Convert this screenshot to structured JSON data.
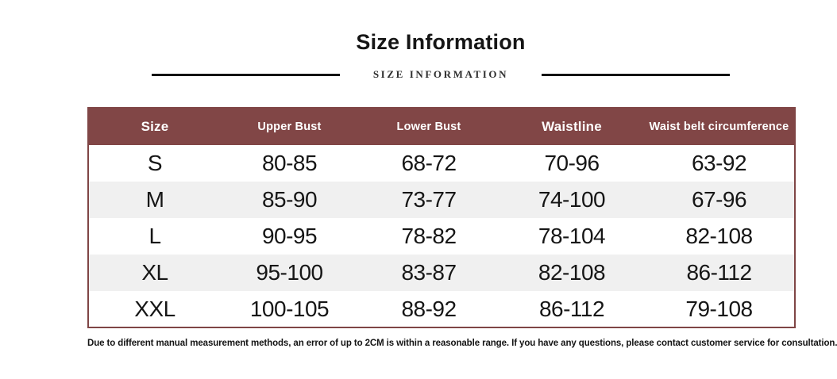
{
  "page": {
    "title": "Size Information",
    "subtitle": "SIZE INFORMATION",
    "footer_note": "Due to different manual measurement methods, an error of up to 2CM is within a reasonable range. If you have any questions, please contact customer service for consultation."
  },
  "colors": {
    "header_bg": "#814646",
    "table_border": "#7f4545",
    "alt_row_bg": "#f0f0f0",
    "header_text": "#ffffff",
    "title_text": "#151515"
  },
  "chart_data": {
    "type": "table",
    "title": "Size Information",
    "subtitle": "SIZE INFORMATION",
    "columns": [
      "Size",
      "Upper Bust",
      "Lower Bust",
      "Waistline",
      "Waist belt circumference"
    ],
    "rows": [
      [
        "S",
        "80-85",
        "68-72",
        "70-96",
        "63-92"
      ],
      [
        "M",
        "85-90",
        "73-77",
        "74-100",
        "67-96"
      ],
      [
        "L",
        "90-95",
        "78-82",
        "78-104",
        "82-108"
      ],
      [
        "XL",
        "95-100",
        "83-87",
        "82-108",
        "86-112"
      ],
      [
        "XXL",
        "100-105",
        "88-92",
        "86-112",
        "79-108"
      ]
    ],
    "footnote": "Due to different manual measurement methods, an error of up to 2CM is within a reasonable range. If you have any questions, please contact customer service for consultation."
  }
}
